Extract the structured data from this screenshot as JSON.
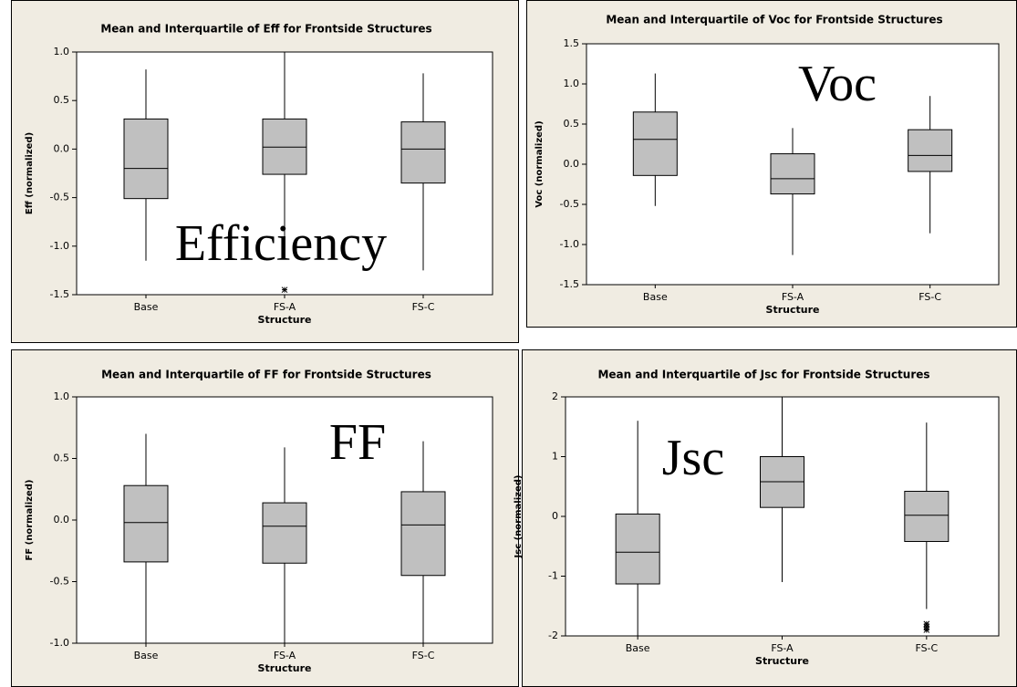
{
  "chart_data": [
    {
      "type": "box",
      "title": "Mean and Interquartile of Eff for Frontside Structures",
      "xlabel": "Structure",
      "ylabel": "Eff (normalized)",
      "annotation": "Efficiency",
      "color": "#c0c0c0",
      "categories": [
        "Base",
        "FS-A",
        "FS-C"
      ],
      "boxes": [
        {
          "low": -1.15,
          "q1": -0.51,
          "median": -0.2,
          "q3": 0.31,
          "high": 0.82,
          "outliers": []
        },
        {
          "low": -0.9,
          "q1": -0.26,
          "median": 0.02,
          "q3": 0.31,
          "high": 1.0,
          "outliers": [
            -1.45
          ]
        },
        {
          "low": -1.25,
          "q1": -0.35,
          "median": 0.0,
          "q3": 0.28,
          "high": 0.78,
          "outliers": []
        }
      ],
      "ylim": [
        -1.5,
        1.0
      ],
      "yticks": [
        {
          "value": -1.5,
          "label": "-1.5"
        },
        {
          "value": -1.0,
          "label": "-1.0"
        },
        {
          "value": -0.5,
          "label": "-0.5"
        },
        {
          "value": 0.0,
          "label": "0.0"
        },
        {
          "value": 0.5,
          "label": "0.5"
        },
        {
          "value": 1.0,
          "label": "1.0"
        }
      ]
    },
    {
      "type": "box",
      "title": "Mean and Interquartile of Voc for Frontside Structures",
      "xlabel": "Structure",
      "ylabel": "Voc (normalized)",
      "annotation": "Voc",
      "color": "#c0c0c0",
      "categories": [
        "Base",
        "FS-A",
        "FS-C"
      ],
      "boxes": [
        {
          "low": -0.52,
          "q1": -0.14,
          "median": 0.31,
          "q3": 0.65,
          "high": 1.13,
          "outliers": []
        },
        {
          "low": -1.13,
          "q1": -0.37,
          "median": -0.18,
          "q3": 0.13,
          "high": 0.45,
          "outliers": []
        },
        {
          "low": -0.86,
          "q1": -0.09,
          "median": 0.11,
          "q3": 0.43,
          "high": 0.85,
          "outliers": []
        }
      ],
      "ylim": [
        -1.5,
        1.5
      ],
      "yticks": [
        {
          "value": -1.5,
          "label": "-1.5"
        },
        {
          "value": -1.0,
          "label": "-1.0"
        },
        {
          "value": -0.5,
          "label": "-0.5"
        },
        {
          "value": 0.0,
          "label": "0.0"
        },
        {
          "value": 0.5,
          "label": "0.5"
        },
        {
          "value": 1.0,
          "label": "1.0"
        },
        {
          "value": 1.5,
          "label": "1.5"
        }
      ]
    },
    {
      "type": "box",
      "title": "Mean and Interquartile of FF for Frontside Structures",
      "xlabel": "Structure",
      "ylabel": "FF (normalized)",
      "annotation": "FF",
      "color": "#c0c0c0",
      "categories": [
        "Base",
        "FS-A",
        "FS-C"
      ],
      "boxes": [
        {
          "low": -1.0,
          "q1": -0.34,
          "median": -0.02,
          "q3": 0.28,
          "high": 0.7,
          "outliers": []
        },
        {
          "low": -1.0,
          "q1": -0.35,
          "median": -0.05,
          "q3": 0.14,
          "high": 0.59,
          "outliers": []
        },
        {
          "low": -1.0,
          "q1": -0.45,
          "median": -0.04,
          "q3": 0.23,
          "high": 0.64,
          "outliers": []
        }
      ],
      "ylim": [
        -1.0,
        1.0
      ],
      "yticks": [
        {
          "value": -1.0,
          "label": "-1.0"
        },
        {
          "value": -0.5,
          "label": "-0.5"
        },
        {
          "value": 0.0,
          "label": "0.0"
        },
        {
          "value": 0.5,
          "label": "0.5"
        },
        {
          "value": 1.0,
          "label": "1.0"
        }
      ]
    },
    {
      "type": "box",
      "title": "Mean and Interquartile of Jsc for Frontside Structures",
      "xlabel": "Structure",
      "ylabel": "Jsc (normalized)",
      "annotation": "Jsc",
      "color": "#c0c0c0",
      "categories": [
        "Base",
        "FS-A",
        "FS-C"
      ],
      "boxes": [
        {
          "low": -2.0,
          "q1": -1.13,
          "median": -0.6,
          "q3": 0.04,
          "high": 1.6,
          "outliers": []
        },
        {
          "low": -1.1,
          "q1": 0.15,
          "median": 0.58,
          "q3": 1.0,
          "high": 2.0,
          "outliers": []
        },
        {
          "low": -1.55,
          "q1": -0.42,
          "median": 0.02,
          "q3": 0.42,
          "high": 1.57,
          "outliers": [
            -1.8,
            -1.85,
            -1.9
          ]
        }
      ],
      "ylim": [
        -2,
        2
      ],
      "yticks": [
        -2,
        -1,
        0,
        1,
        2
      ]
    }
  ]
}
